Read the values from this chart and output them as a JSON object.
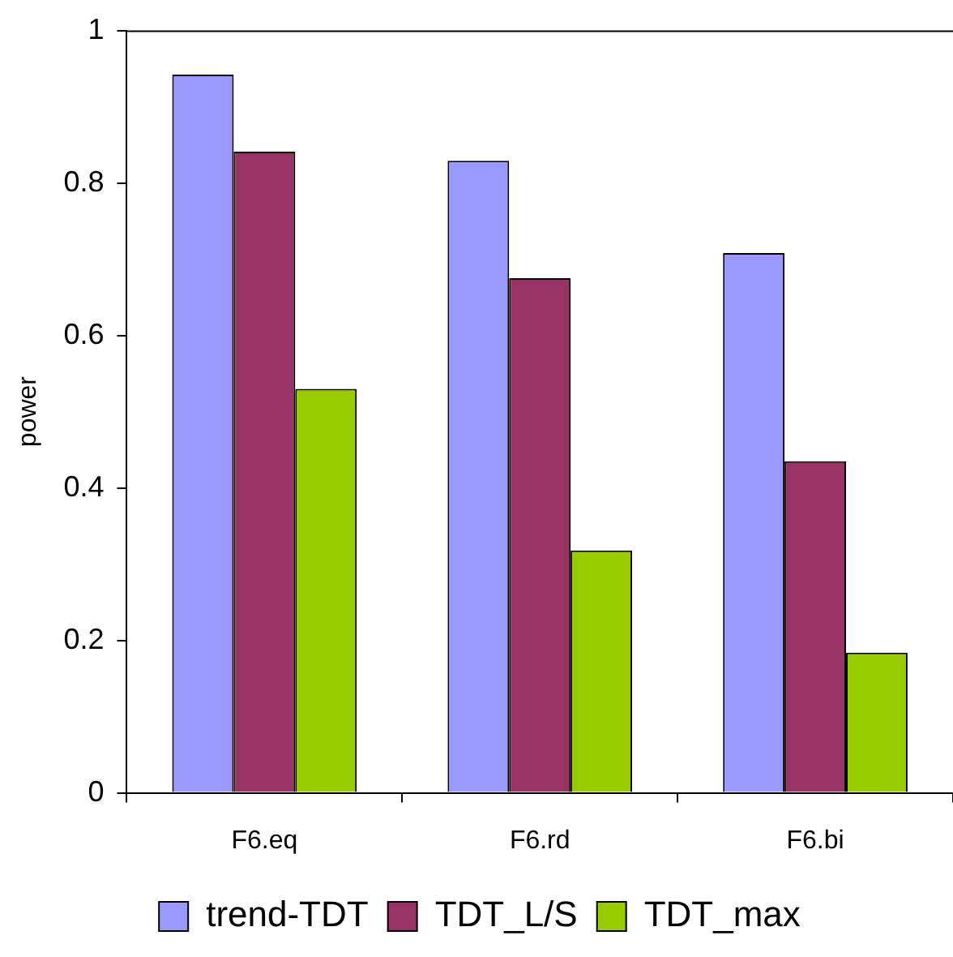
{
  "chart_data": {
    "type": "bar",
    "ylabel": "power",
    "categories": [
      "F6.eq",
      "F6.rd",
      "F6.bi"
    ],
    "series": [
      {
        "name": "trend-TDT",
        "color": "#9999ff",
        "values": [
          0.942,
          0.829,
          0.708
        ]
      },
      {
        "name": "TDT_L/S",
        "color": "#993366",
        "values": [
          0.841,
          0.675,
          0.435
        ]
      },
      {
        "name": "TDT_max",
        "color": "#99cc00",
        "values": [
          0.53,
          0.318,
          0.184
        ]
      }
    ],
    "ylim": [
      0,
      1
    ],
    "yticks": [
      0,
      0.2,
      0.4,
      0.6,
      0.8,
      1
    ],
    "grid": false,
    "legend": "bottom"
  }
}
